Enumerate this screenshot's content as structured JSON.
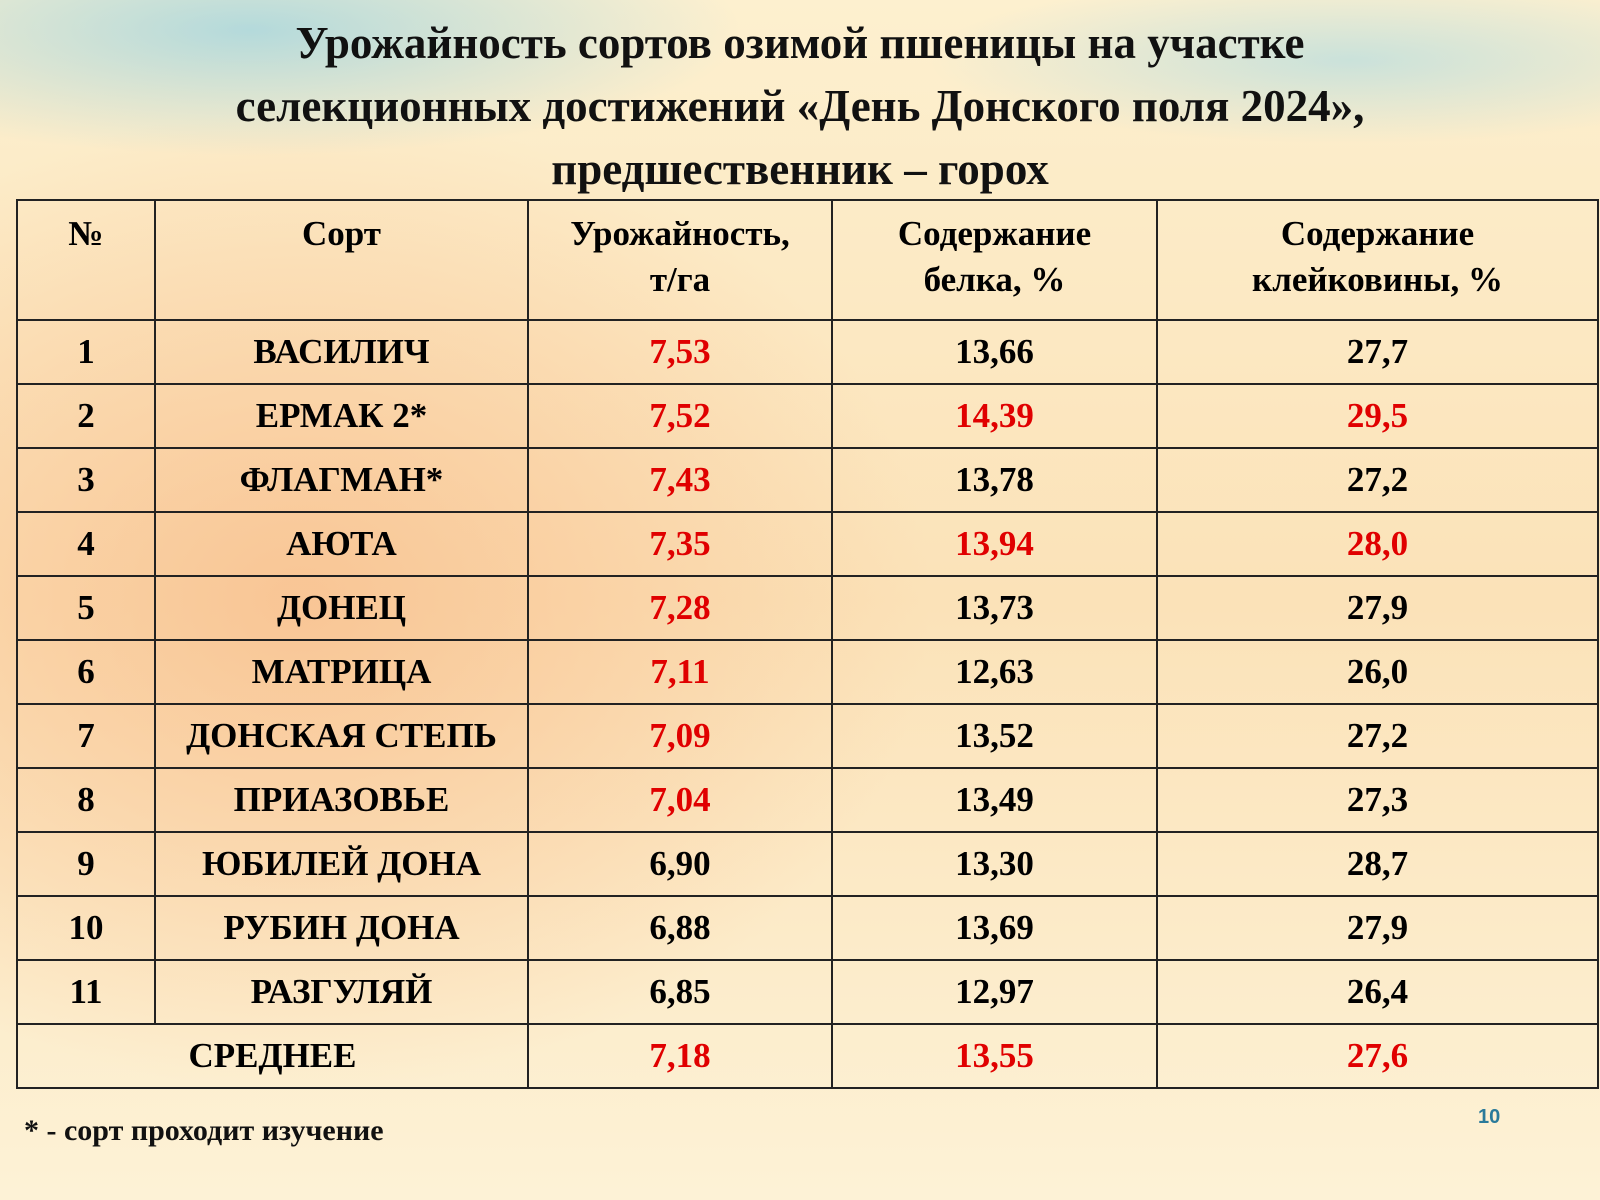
{
  "title": [
    "Урожайность сортов озимой пшеницы на участке",
    "селекционных достижений «День Донского поля 2024»,",
    "предшественник – горох"
  ],
  "table": {
    "header": [
      [
        "№"
      ],
      [
        "Сорт"
      ],
      [
        "Урожайность,",
        "т/га"
      ],
      [
        "Содержание",
        "белка, %"
      ],
      [
        "Содержание",
        "клейковины, %"
      ]
    ],
    "rows": [
      {
        "cells": [
          {
            "text": "1",
            "color": "#000000"
          },
          {
            "text": "ВАСИЛИЧ",
            "color": "#000000"
          },
          {
            "text": "7,53",
            "color": "#e00000"
          },
          {
            "text": "13,66",
            "color": "#000000"
          },
          {
            "text": "27,7",
            "color": "#000000"
          }
        ]
      },
      {
        "cells": [
          {
            "text": "2",
            "color": "#000000"
          },
          {
            "text": "ЕРМАК 2*",
            "color": "#000000"
          },
          {
            "text": "7,52",
            "color": "#e00000"
          },
          {
            "text": "14,39",
            "color": "#e00000"
          },
          {
            "text": "29,5",
            "color": "#e00000"
          }
        ]
      },
      {
        "cells": [
          {
            "text": "3",
            "color": "#000000"
          },
          {
            "text": "ФЛАГМАН*",
            "color": "#000000"
          },
          {
            "text": "7,43",
            "color": "#e00000"
          },
          {
            "text": "13,78",
            "color": "#000000"
          },
          {
            "text": "27,2",
            "color": "#000000"
          }
        ]
      },
      {
        "cells": [
          {
            "text": "4",
            "color": "#000000"
          },
          {
            "text": "АЮТА",
            "color": "#000000"
          },
          {
            "text": "7,35",
            "color": "#e00000"
          },
          {
            "text": "13,94",
            "color": "#e00000"
          },
          {
            "text": "28,0",
            "color": "#e00000"
          }
        ]
      },
      {
        "cells": [
          {
            "text": "5",
            "color": "#000000"
          },
          {
            "text": "ДОНЕЦ",
            "color": "#000000"
          },
          {
            "text": "7,28",
            "color": "#e00000"
          },
          {
            "text": "13,73",
            "color": "#000000"
          },
          {
            "text": "27,9",
            "color": "#000000"
          }
        ]
      },
      {
        "cells": [
          {
            "text": "6",
            "color": "#000000"
          },
          {
            "text": "МАТРИЦА",
            "color": "#000000"
          },
          {
            "text": "7,11",
            "color": "#e00000"
          },
          {
            "text": "12,63",
            "color": "#000000"
          },
          {
            "text": "26,0",
            "color": "#000000"
          }
        ]
      },
      {
        "cells": [
          {
            "text": "7",
            "color": "#000000"
          },
          {
            "text": "ДОНСКАЯ СТЕПЬ",
            "color": "#000000"
          },
          {
            "text": "7,09",
            "color": "#e00000"
          },
          {
            "text": "13,52",
            "color": "#000000"
          },
          {
            "text": "27,2",
            "color": "#000000"
          }
        ]
      },
      {
        "cells": [
          {
            "text": "8",
            "color": "#000000"
          },
          {
            "text": "ПРИАЗОВЬЕ",
            "color": "#000000"
          },
          {
            "text": "7,04",
            "color": "#e00000"
          },
          {
            "text": "13,49",
            "color": "#000000"
          },
          {
            "text": "27,3",
            "color": "#000000"
          }
        ]
      },
      {
        "cells": [
          {
            "text": "9",
            "color": "#000000"
          },
          {
            "text": "ЮБИЛЕЙ ДОНА",
            "color": "#000000"
          },
          {
            "text": "6,90",
            "color": "#000000"
          },
          {
            "text": "13,30",
            "color": "#000000"
          },
          {
            "text": "28,7",
            "color": "#000000"
          }
        ]
      },
      {
        "cells": [
          {
            "text": "10",
            "color": "#000000"
          },
          {
            "text": "РУБИН ДОНА",
            "color": "#000000"
          },
          {
            "text": "6,88",
            "color": "#000000"
          },
          {
            "text": "13,69",
            "color": "#000000"
          },
          {
            "text": "27,9",
            "color": "#000000"
          }
        ]
      },
      {
        "cells": [
          {
            "text": "11",
            "color": "#000000"
          },
          {
            "text": "РАЗГУЛЯЙ",
            "color": "#000000"
          },
          {
            "text": "6,85",
            "color": "#000000"
          },
          {
            "text": "12,97",
            "color": "#000000"
          },
          {
            "text": "26,4",
            "color": "#000000"
          }
        ]
      }
    ],
    "footer": {
      "label": "СРЕДНЕЕ",
      "cells": [
        {
          "text": "7,18",
          "color": "#e00000"
        },
        {
          "text": "13,55",
          "color": "#e00000"
        },
        {
          "text": "27,6",
          "color": "#e00000"
        }
      ]
    }
  },
  "footnote": "* - сорт проходит изучение",
  "page_number": "10"
}
